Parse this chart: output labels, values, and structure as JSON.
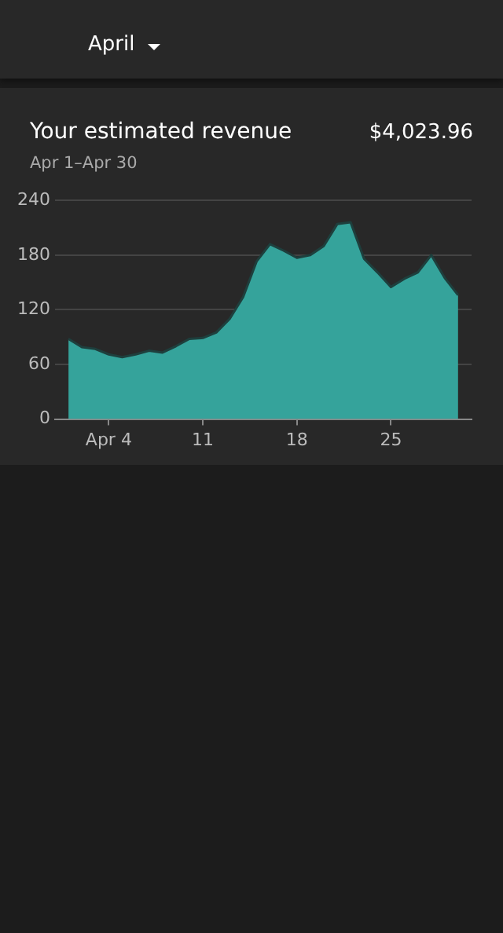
{
  "chart_data": {
    "type": "area",
    "title": "Your estimated revenue",
    "subtitle": "Apr 1–Apr 30",
    "annotations": [
      "April",
      "$4,023.96"
    ],
    "x": [
      1,
      2,
      3,
      4,
      5,
      6,
      7,
      8,
      9,
      10,
      11,
      12,
      13,
      14,
      15,
      16,
      17,
      18,
      19,
      20,
      21,
      22,
      23,
      24,
      25,
      26,
      27,
      28,
      29,
      30
    ],
    "series": [
      {
        "color": "#35a39b",
        "values": [
          88,
          79,
          77,
          71,
          68,
          71,
          75,
          73,
          80,
          88,
          89,
          95,
          110,
          134,
          173,
          192,
          185,
          177,
          180,
          190,
          214,
          216,
          176,
          161,
          145,
          154,
          161,
          180,
          155,
          136
        ]
      }
    ],
    "xlim": [
      0,
      31
    ],
    "xticks": [
      {
        "value": 4,
        "label": "Apr 4"
      },
      {
        "value": 11,
        "label": "11"
      },
      {
        "value": 18,
        "label": "18"
      },
      {
        "value": 25,
        "label": "25"
      }
    ],
    "ylim": [
      0,
      240
    ],
    "yticks": [
      0,
      60,
      120,
      180,
      240
    ],
    "grid": "y",
    "legend": false
  }
}
